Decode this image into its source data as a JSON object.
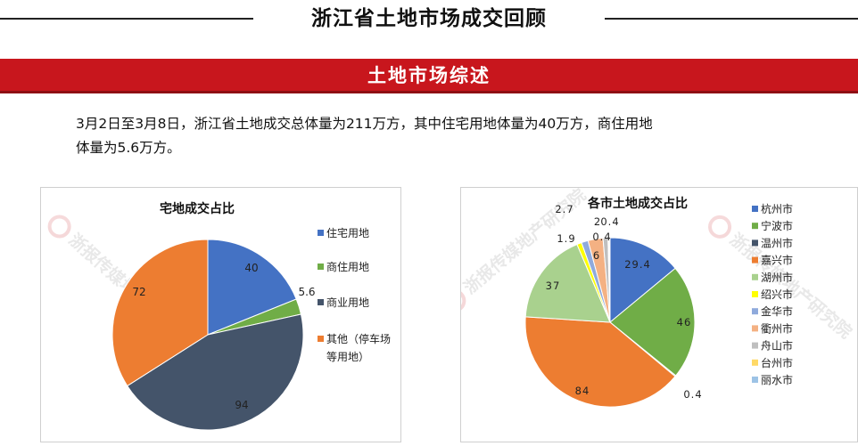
{
  "header": {
    "title": "浙江省土地市场成交回顾"
  },
  "banner": {
    "title": "土地市场综述"
  },
  "summary": {
    "line1": "3月2日至3月8日，浙江省土地成交总体量为211万方，其中住宅用地体量为40万方，商住用地",
    "line2": "体量为5.6万方。"
  },
  "colors": {
    "banner": "#c8161d",
    "accent_dark": "#8e0f14"
  },
  "chart_data": [
    {
      "type": "pie",
      "title": "宅地成交占比",
      "legend_position": "right",
      "slices": [
        {
          "name": "住宅用地",
          "value": 40,
          "label": "40",
          "color": "#4472c4"
        },
        {
          "name": "商住用地",
          "value": 5.6,
          "label": "5.6",
          "color": "#70ad47"
        },
        {
          "name": "商业用地",
          "value": 94,
          "label": "94",
          "color": "#44546a"
        },
        {
          "name": "其他（停车场等用地）",
          "value": 72,
          "label": "72",
          "color": "#ed7d31"
        }
      ],
      "legend": [
        "住宅用地",
        "商住用地",
        "商业用地",
        "其他（停车场",
        "等用地）"
      ]
    },
    {
      "type": "pie",
      "title": "各市土地成交占比",
      "legend_position": "right",
      "slices": [
        {
          "name": "杭州市",
          "value": 29.4,
          "label": "29.4",
          "color": "#4472c4"
        },
        {
          "name": "宁波市",
          "value": 46,
          "label": "46",
          "color": "#70ad47"
        },
        {
          "name": "温州市",
          "value": 0.4,
          "label": "0.4",
          "color": "#44546a"
        },
        {
          "name": "嘉兴市",
          "value": 84,
          "label": "84",
          "color": "#ed7d31"
        },
        {
          "name": "湖州市",
          "value": 37,
          "label": "37",
          "color": "#a9d18e"
        },
        {
          "name": "绍兴市",
          "value": 1.9,
          "label": "1.9",
          "color": "#ffff00"
        },
        {
          "name": "金华市",
          "value": 2.7,
          "label": "2.7",
          "color": "#8faadc"
        },
        {
          "name": "衢州市",
          "value": 6,
          "label": "6",
          "color": "#f4b183"
        },
        {
          "name": "舟山市",
          "value": 2,
          "label": "2",
          "color": "#bfbfbf"
        },
        {
          "name": "台州市",
          "value": 0.4,
          "label": "0.4",
          "color": "#ffd966"
        },
        {
          "name": "丽水市",
          "value": 0.4,
          "label": "0.4",
          "color": "#9dc3e6"
        }
      ]
    }
  ],
  "watermark": {
    "text1": "浙报传媒地产",
    "text2": "研究院"
  }
}
